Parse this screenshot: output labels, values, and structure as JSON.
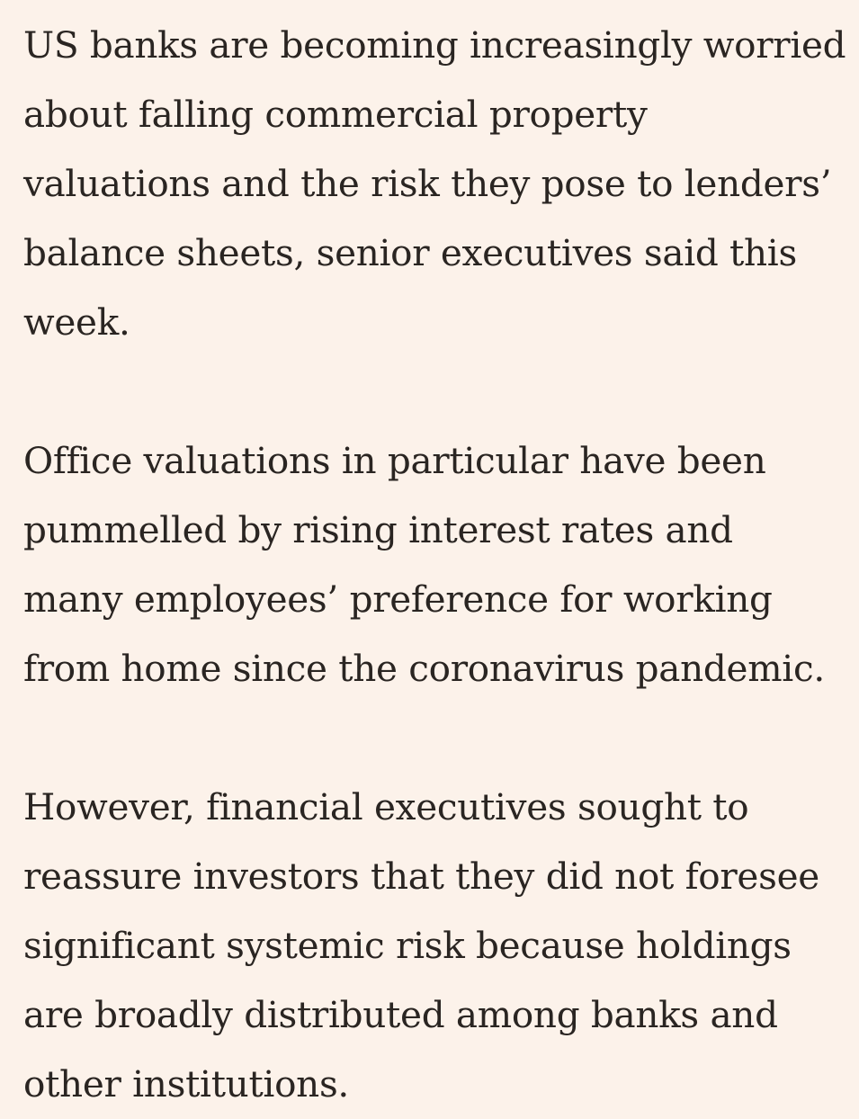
{
  "article": {
    "paragraphs": [
      {
        "lines": [
          "US banks are becoming increasingly worried",
          "about falling commercial property",
          "valuations and the risk they pose to lenders’",
          "balance sheets, senior executives said this",
          "week."
        ]
      },
      {
        "lines": [
          "Office valuations in particular have been",
          "pummelled by rising interest rates and",
          "many employees’ preference for working",
          "from home since the coronavirus pandemic."
        ]
      },
      {
        "lines": [
          "However, financial executives sought to",
          "reassure investors that they did not foresee",
          "significant systemic risk because holdings",
          "are broadly distributed among banks and",
          "other institutions."
        ]
      }
    ]
  }
}
